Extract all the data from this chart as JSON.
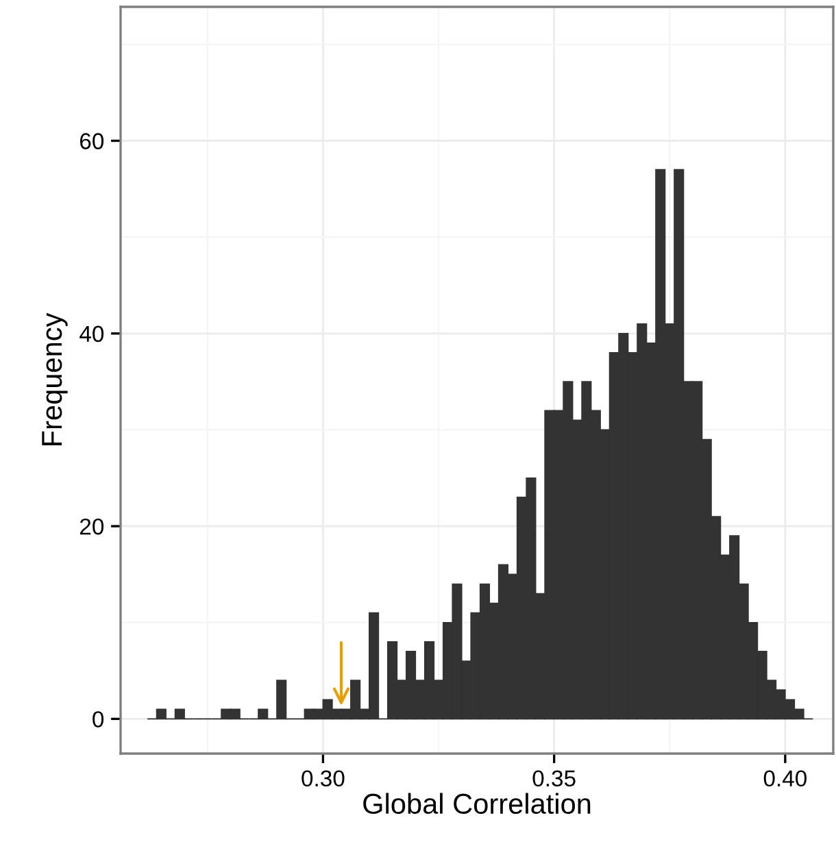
{
  "chart_data": {
    "type": "histogram",
    "xlabel": "Global Correlation",
    "ylabel": "Frequency",
    "bins": [
      0.262,
      0.264,
      0.266,
      0.268,
      0.27,
      0.272,
      0.274,
      0.276,
      0.278,
      0.28,
      0.282,
      0.284,
      0.286,
      0.288,
      0.29,
      0.292,
      0.294,
      0.296,
      0.298,
      0.3,
      0.302,
      0.304,
      0.306,
      0.308,
      0.31,
      0.312,
      0.314,
      0.316,
      0.318,
      0.32,
      0.322,
      0.324,
      0.326,
      0.328,
      0.33,
      0.332,
      0.334,
      0.336,
      0.338,
      0.34,
      0.342,
      0.344,
      0.346,
      0.348,
      0.35,
      0.352,
      0.354,
      0.356,
      0.358,
      0.36,
      0.362,
      0.364,
      0.366,
      0.368,
      0.37,
      0.372,
      0.374,
      0.376,
      0.378,
      0.38,
      0.382,
      0.384,
      0.386,
      0.388,
      0.39,
      0.392,
      0.394,
      0.396,
      0.398,
      0.4,
      0.402,
      0.404,
      0.406
    ],
    "values": [
      0,
      1,
      0,
      1,
      0,
      0,
      0,
      0,
      1,
      1,
      0,
      0,
      1,
      0,
      4,
      0,
      0,
      1,
      1,
      2,
      1,
      1,
      4,
      1,
      11,
      0,
      8,
      4,
      7,
      4,
      8,
      4,
      10,
      14,
      6,
      11,
      14,
      12,
      16,
      15,
      23,
      25,
      13,
      32,
      32,
      35,
      31,
      35,
      32,
      30,
      38,
      40,
      38,
      41,
      39,
      57,
      41,
      57,
      35,
      35,
      29,
      21,
      17,
      19,
      14,
      10,
      7,
      4,
      3,
      2,
      1,
      0
    ],
    "color": "#333333",
    "xlim": [
      0.2562,
      0.4104
    ],
    "xticks": [
      {
        "value": 0.3,
        "label": "0.30"
      },
      {
        "value": 0.35,
        "label": "0.35"
      },
      {
        "value": 0.4,
        "label": "0.40"
      }
    ],
    "ylim": [
      -3.6,
      73.9
    ],
    "yticks": [
      0,
      20,
      40,
      60
    ],
    "grid": true
  }
}
